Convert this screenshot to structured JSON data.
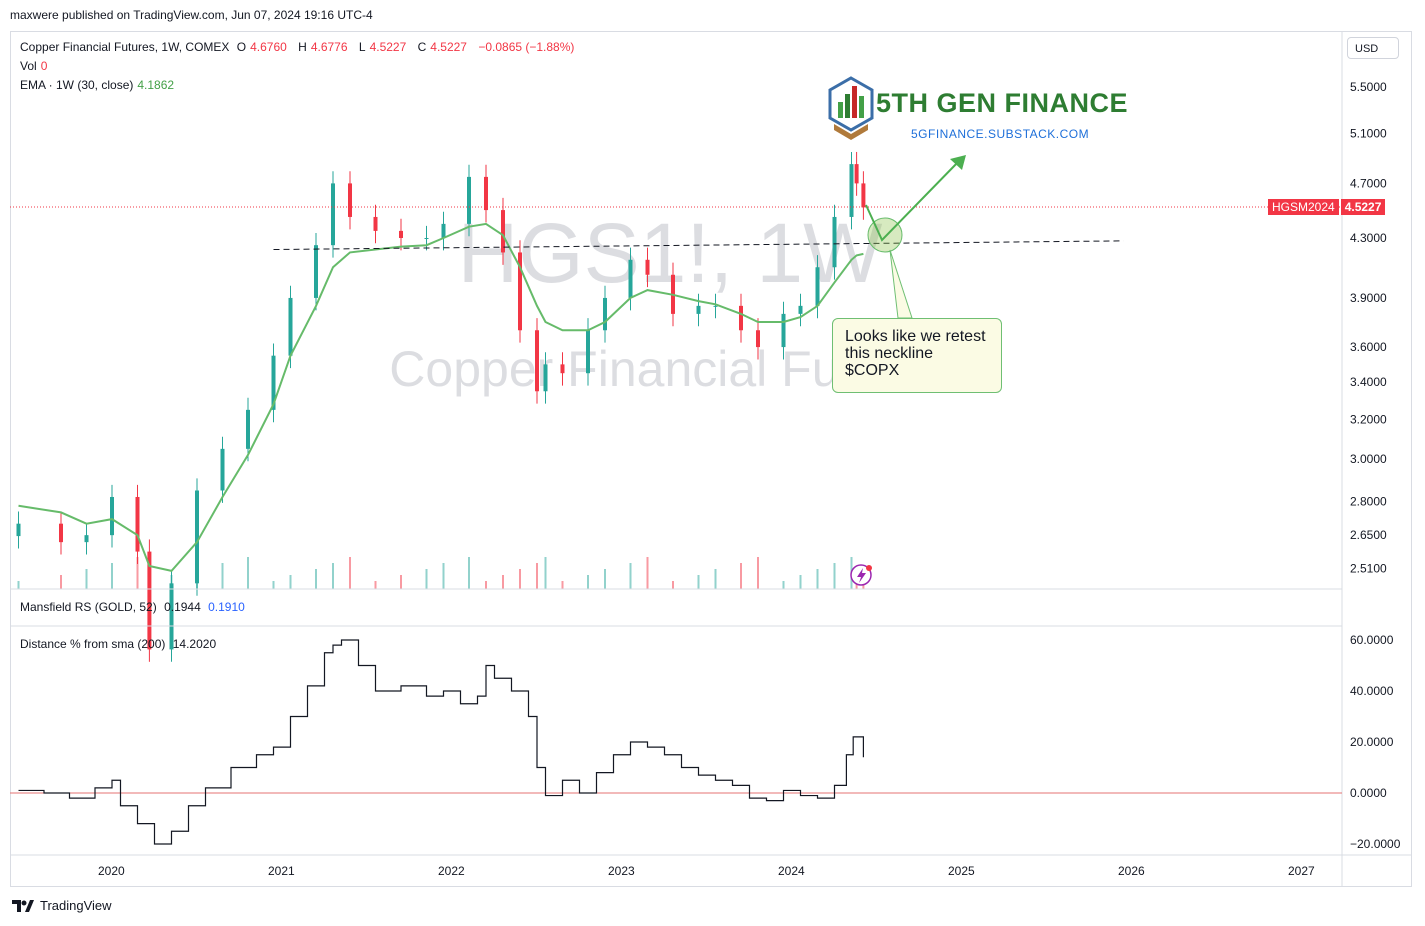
{
  "header": {
    "publisher": "maxwere published on TradingView.com, Jun 07, 2024 19:16 UTC-4"
  },
  "legend": {
    "title": "Copper Financial Futures, 1W, COMEX",
    "o_label": "O",
    "o": "4.6760",
    "h_label": "H",
    "h": "4.6776",
    "l_label": "L",
    "l": "4.5227",
    "c_label": "C",
    "c": "4.5227",
    "change": "−0.0865 (−1.88%)",
    "vol_label": "Vol",
    "vol": "0",
    "ema_label": "EMA · 1W (30, close)",
    "ema": "4.1862"
  },
  "currency": "USD",
  "price_tag": {
    "symbol": "HGSM2024",
    "value": "4.5227"
  },
  "watermark": {
    "symbol": "HGS1!, 1W",
    "name": "Copper Financial Futures"
  },
  "logo": {
    "title": "5TH GEN FINANCE",
    "subtitle": "5GFINANCE.SUBSTACK.COM"
  },
  "annotation": "Looks like we retest this neckline $COPX",
  "mansfield": {
    "label": "Mansfield RS (GOLD, 52)",
    "v1": "0.1944",
    "v2": "0.1910"
  },
  "distance": {
    "label": "Distance % from sma (200)",
    "value": "14.2020"
  },
  "footer": {
    "brand": "TradingView"
  },
  "colors": {
    "up": "#26a69a",
    "down": "#f23645",
    "ema": "#66bb6a",
    "arrow": "#4caf50"
  },
  "chart_data": [
    {
      "type": "candlestick",
      "title": "Copper Financial Futures, 1W, COMEX",
      "y_ticks": [
        "5.5000",
        "5.1000",
        "4.7000",
        "4.3000",
        "3.9000",
        "3.6000",
        "3.4000",
        "3.2000",
        "3.0000",
        "2.8000",
        "2.6500",
        "2.5100"
      ],
      "x_ticks": [
        "2020",
        "2021",
        "2022",
        "2023",
        "2024",
        "2025",
        "2026",
        "2027"
      ],
      "x": [
        2019.45,
        2019.7,
        2019.85,
        2020.0,
        2020.15,
        2020.22,
        2020.35,
        2020.5,
        2020.65,
        2020.8,
        2020.95,
        2021.05,
        2021.2,
        2021.3,
        2021.4,
        2021.55,
        2021.7,
        2021.85,
        2021.95,
        2022.1,
        2022.2,
        2022.3,
        2022.4,
        2022.5,
        2022.55,
        2022.65,
        2022.8,
        2022.9,
        2023.05,
        2023.15,
        2023.3,
        2023.45,
        2023.55,
        2023.7,
        2023.8,
        2023.95,
        2024.05,
        2024.15,
        2024.25,
        2024.35,
        2024.38,
        2024.42
      ],
      "close": [
        2.7,
        2.62,
        2.65,
        2.82,
        2.58,
        2.2,
        2.45,
        2.85,
        3.05,
        3.25,
        3.55,
        3.9,
        4.25,
        4.7,
        4.45,
        4.35,
        4.3,
        4.3,
        4.4,
        4.75,
        4.5,
        4.2,
        3.7,
        3.35,
        3.5,
        3.45,
        3.7,
        3.9,
        4.15,
        4.05,
        3.8,
        3.85,
        3.85,
        3.7,
        3.6,
        3.8,
        3.85,
        4.1,
        4.45,
        4.85,
        4.7,
        4.52
      ],
      "ema30": [
        2.78,
        2.75,
        2.7,
        2.72,
        2.65,
        2.52,
        2.5,
        2.62,
        2.82,
        3.02,
        3.28,
        3.55,
        3.85,
        4.1,
        4.2,
        4.22,
        4.24,
        4.25,
        4.3,
        4.38,
        4.4,
        4.32,
        4.1,
        3.85,
        3.75,
        3.7,
        3.7,
        3.75,
        3.9,
        3.95,
        3.92,
        3.88,
        3.86,
        3.8,
        3.75,
        3.75,
        3.78,
        3.85,
        4.0,
        4.15,
        4.18,
        4.19
      ],
      "neckline": {
        "from": [
          2020.95,
          4.22
        ],
        "to": [
          2025.95,
          4.28
        ]
      },
      "last_price": 4.5227
    },
    {
      "type": "line",
      "title": "Distance % from sma (200)",
      "y_ticks": [
        "60.0000",
        "40.0000",
        "20.0000",
        "0.0000",
        "−20.0000"
      ],
      "x": [
        2019.45,
        2019.6,
        2019.75,
        2019.9,
        2020.0,
        2020.05,
        2020.15,
        2020.25,
        2020.35,
        2020.45,
        2020.55,
        2020.7,
        2020.85,
        2020.95,
        2021.05,
        2021.15,
        2021.25,
        2021.3,
        2021.35,
        2021.45,
        2021.55,
        2021.7,
        2021.85,
        2021.95,
        2022.05,
        2022.15,
        2022.2,
        2022.25,
        2022.35,
        2022.45,
        2022.5,
        2022.55,
        2022.65,
        2022.75,
        2022.85,
        2022.95,
        2023.05,
        2023.15,
        2023.25,
        2023.35,
        2023.45,
        2023.55,
        2023.65,
        2023.75,
        2023.85,
        2023.95,
        2024.05,
        2024.15,
        2024.25,
        2024.32,
        2024.36,
        2024.42
      ],
      "values": [
        1,
        0,
        -2,
        2,
        5,
        -5,
        -12,
        -20,
        -15,
        -5,
        2,
        10,
        15,
        18,
        30,
        42,
        55,
        58,
        60,
        50,
        40,
        42,
        38,
        40,
        35,
        38,
        50,
        45,
        40,
        30,
        10,
        -1,
        5,
        0,
        8,
        15,
        20,
        18,
        15,
        10,
        7,
        5,
        3,
        -2,
        -3,
        1,
        -1,
        -2,
        3,
        15,
        22,
        14
      ]
    }
  ]
}
